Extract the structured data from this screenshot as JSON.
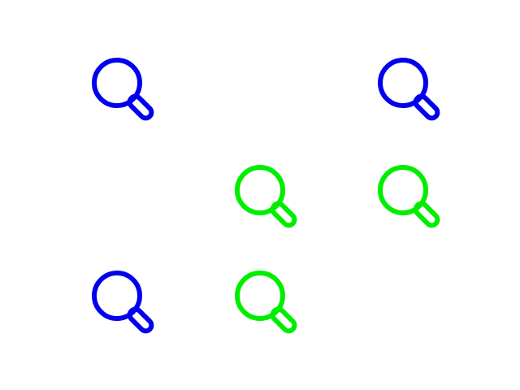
{
  "canvas": {
    "background": "#ffffff"
  },
  "colors": {
    "blue": "#0000ee",
    "green": "#00ee00"
  },
  "icons": [
    {
      "name": "magnifier-icon",
      "color": "blue"
    },
    {
      "name": "magnifier-icon",
      "color": "blue"
    },
    {
      "name": "magnifier-icon",
      "color": "green"
    },
    {
      "name": "magnifier-icon",
      "color": "green"
    },
    {
      "name": "magnifier-icon",
      "color": "blue"
    },
    {
      "name": "magnifier-icon",
      "color": "green"
    }
  ]
}
